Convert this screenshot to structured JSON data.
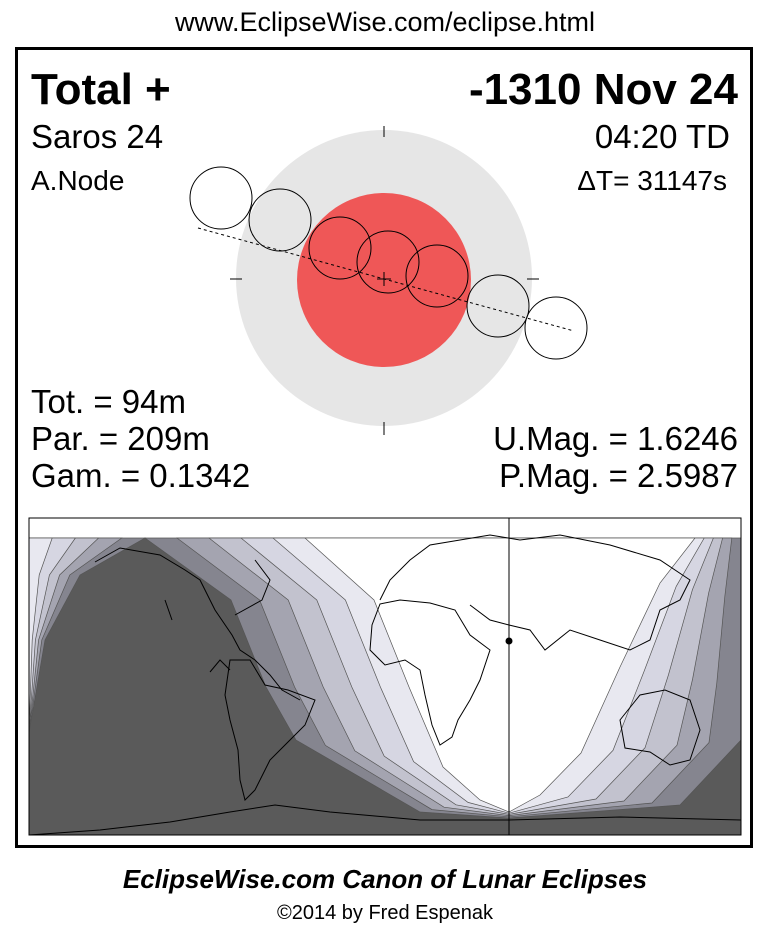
{
  "url": "www.EclipseWise.com/eclipse.html",
  "eclipse": {
    "type": "Total  +",
    "date": "-1310 Nov 24",
    "saros": "Saros  24",
    "time": "04:20 TD",
    "node": "A.Node",
    "delta_t": "ΔT=  31147s",
    "totality": "Tot. =  94m",
    "partial": "Par. = 209m",
    "gamma": "Gam. = 0.1342",
    "umbral_mag": "U.Mag. = 1.6246",
    "penumbral_mag": "P.Mag. = 2.5987"
  },
  "colors": {
    "penumbra": "#e6e6e6",
    "umbra": "#ef5757",
    "night": "#5a5a5a",
    "bands": [
      "#85858f",
      "#a4a4b0",
      "#c2c2ce",
      "#d6d6e2",
      "#e8e8f0"
    ],
    "day": "#ffffff"
  },
  "footer": {
    "title": "EclipseWise.com Canon of Lunar Eclipses",
    "copyright": "©2014 by Fred Espenak"
  }
}
